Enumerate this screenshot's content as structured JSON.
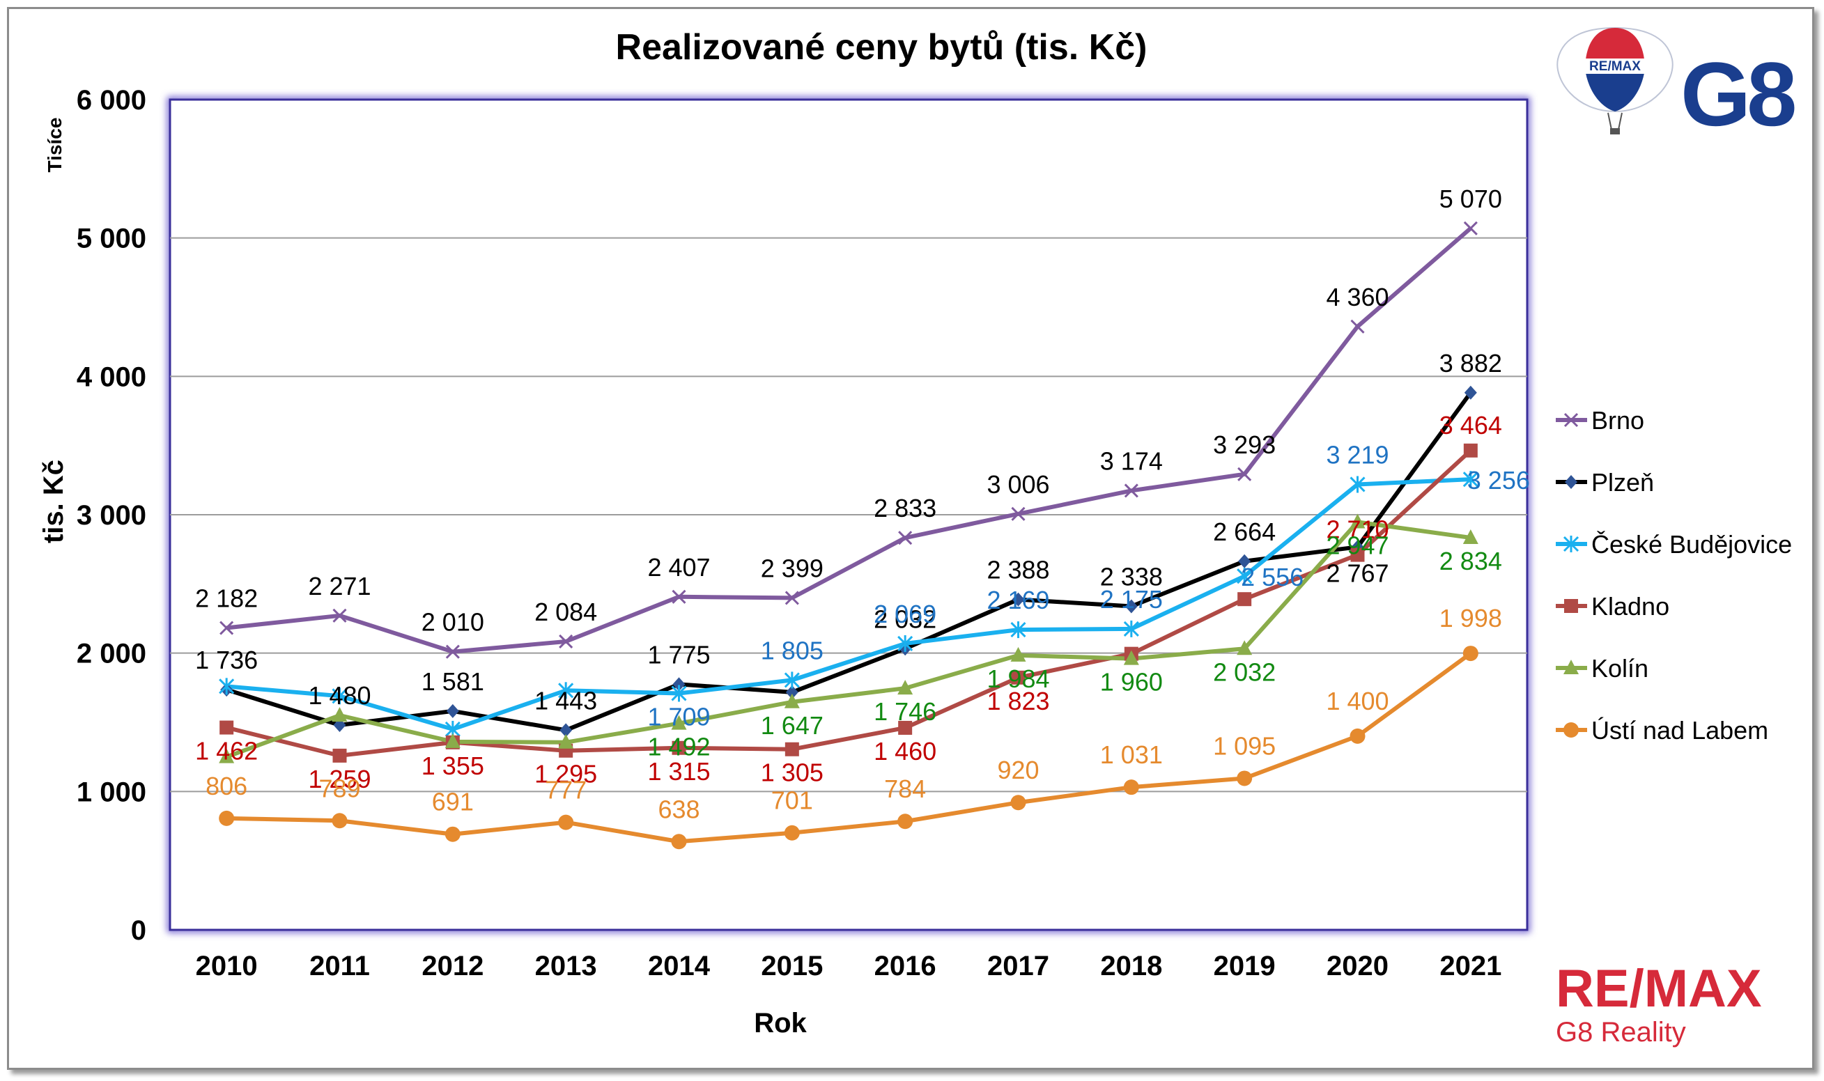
{
  "chart_data": {
    "type": "line",
    "title": "Realizované ceny bytů (tis. Kč)",
    "xlabel": "Rok",
    "ylabel": "tis. Kč",
    "y_unit_label": "Tisíce",
    "ylim": [
      0,
      6000
    ],
    "yticks": [
      0,
      1000,
      2000,
      3000,
      4000,
      5000,
      6000
    ],
    "ytick_labels": [
      "0",
      "1 000",
      "2 000",
      "3 000",
      "4 000",
      "5 000",
      "6 000"
    ],
    "grid": true,
    "legend_position": "right",
    "categories": [
      "2010",
      "2011",
      "2012",
      "2013",
      "2014",
      "2015",
      "2016",
      "2017",
      "2018",
      "2019",
      "2020",
      "2021"
    ],
    "series": [
      {
        "name": "Brno",
        "color": "#7f5a9e",
        "label_color": "#000000",
        "marker": "x",
        "values": [
          2182,
          2271,
          2010,
          2084,
          2407,
          2399,
          2833,
          3006,
          3174,
          3293,
          4360,
          5070
        ],
        "labels": [
          "2 182",
          "2 271",
          "2 010",
          "2 084",
          "2 407",
          "2 399",
          "2 833",
          "3 006",
          "3 174",
          "3 293",
          "4 360",
          "5 070"
        ]
      },
      {
        "name": "Plzeň",
        "color": "#000000",
        "label_color": "#000000",
        "marker": "diamond",
        "marker_color": "#2f5496",
        "values": [
          1736,
          1480,
          1581,
          1443,
          1775,
          1717,
          2032,
          2388,
          2338,
          2664,
          2767,
          3882
        ],
        "labels": [
          "1 736",
          "1 480",
          "1 581",
          "1 443",
          "1 775",
          "",
          "2 032",
          "2 388",
          "2 338",
          "2 664",
          "2 767",
          "3 882"
        ]
      },
      {
        "name": "České Budějovice",
        "color": "#1ab0ef",
        "label_color": "#1f73c3",
        "marker": "star",
        "values": [
          1760,
          1690,
          1450,
          1730,
          1709,
          1805,
          2069,
          2169,
          2175,
          2556,
          3219,
          3256
        ],
        "labels": [
          "",
          "",
          "",
          "",
          "1 709",
          "1 805",
          "2 069",
          "2 169",
          "2 175",
          "2 556",
          "3 219",
          "3 256"
        ]
      },
      {
        "name": "Kladno",
        "color": "#b04a45",
        "label_color": "#c00000",
        "marker": "square",
        "values": [
          1462,
          1259,
          1355,
          1295,
          1315,
          1305,
          1460,
          1823,
          1995,
          2390,
          2710,
          3464
        ],
        "labels": [
          "1 462",
          "1 259",
          "1 355",
          "1 295",
          "1 315",
          "1 305",
          "1 460",
          "1 823",
          "",
          "",
          "2 710",
          "3 464"
        ]
      },
      {
        "name": "Kolín",
        "color": "#8aac4a",
        "label_color": "#128a12",
        "marker": "triangle",
        "values": [
          1250,
          1550,
          1360,
          1355,
          1492,
          1647,
          1746,
          1984,
          1960,
          2032,
          2947,
          2834
        ],
        "labels": [
          "",
          "",
          "",
          "",
          "1 492",
          "1 647",
          "1 746",
          "1 984",
          "1 960",
          "2 032",
          "2 947",
          "2 834"
        ]
      },
      {
        "name": "Ústí nad Labem",
        "color": "#e58a2e",
        "label_color": "#e58a2e",
        "marker": "circle",
        "values": [
          806,
          789,
          691,
          777,
          638,
          701,
          784,
          920,
          1031,
          1095,
          1400,
          1998
        ],
        "labels": [
          "806",
          "789",
          "691",
          "777",
          "638",
          "701",
          "784",
          "920",
          "1 031",
          "1 095",
          "1 400",
          "1 998"
        ]
      }
    ]
  },
  "branding": {
    "balloon_text": "RE/MAX",
    "top_logo_text": "G8",
    "bottom_logo_text": "RE/MAX",
    "bottom_logo_sub": "G8 Reality",
    "brand_blue": "#1a3e8e",
    "brand_red": "#d62a3a"
  }
}
